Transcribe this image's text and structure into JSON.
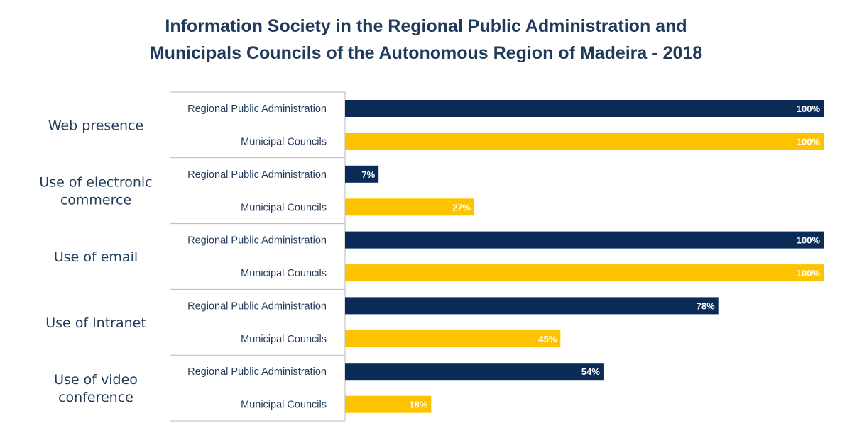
{
  "title_lines": [
    "Information Society in the Regional Public Administration and",
    "Municipals Councils of the Autonomous Region of Madeira - 2018"
  ],
  "colors": {
    "regional": "#0b2b57",
    "municipal": "#fdc300",
    "text": "#1f3a5a",
    "axis": "#b8b8b8"
  },
  "chart_data": {
    "type": "bar",
    "orientation": "horizontal",
    "title": "Information Society in the Regional Public Administration and Municipals Councils of the Autonomous Region of Madeira - 2018",
    "xlim": [
      0,
      100
    ],
    "value_unit": "%",
    "grid": false,
    "categories": [
      [
        "Web presence"
      ],
      [
        "Use of electronic",
        "commerce"
      ],
      [
        "Use of email"
      ],
      [
        "Use of Intranet"
      ],
      [
        "Use of video",
        "conference"
      ]
    ],
    "series": [
      {
        "name": "Regional Public Administration",
        "values": [
          100,
          7,
          100,
          78,
          54
        ],
        "labels": [
          "100%",
          "7%",
          "100%",
          "78%",
          "54%"
        ]
      },
      {
        "name": "Municipal Councils",
        "values": [
          100,
          27,
          100,
          45,
          18
        ],
        "labels": [
          "100%",
          "27%",
          "100%",
          "45%",
          "18%"
        ]
      }
    ]
  }
}
